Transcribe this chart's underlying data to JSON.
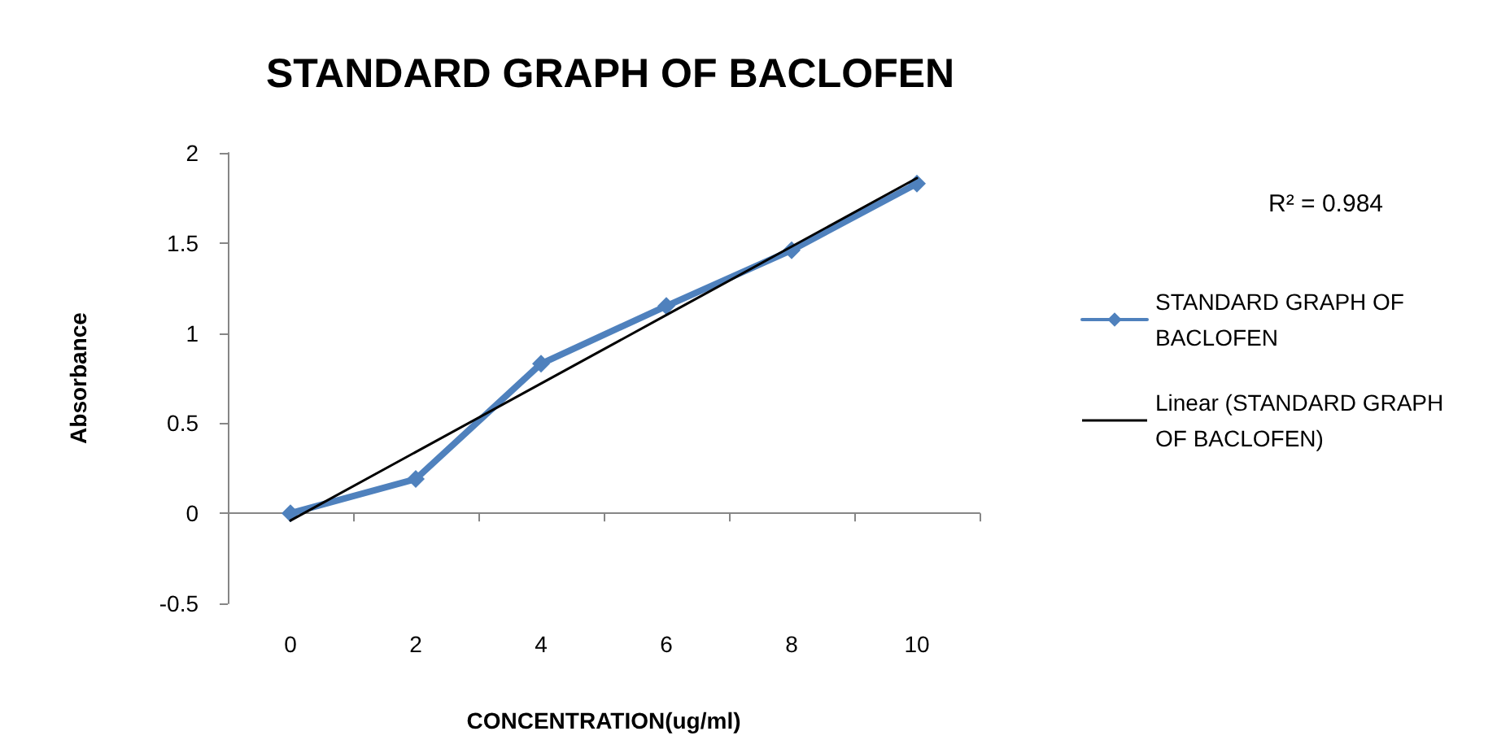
{
  "chart_data": {
    "type": "line",
    "title": "STANDARD GRAPH OF BACLOFEN",
    "xlabel": "CONCENTRATION(ug/ml)",
    "ylabel": "Absorbance",
    "categories": [
      "0",
      "2",
      "4",
      "6",
      "8",
      "10"
    ],
    "series": [
      {
        "name": "STANDARD GRAPH OF BACLOFEN",
        "color": "#4f81bd",
        "values": [
          0,
          0.19,
          0.83,
          1.15,
          1.46,
          1.83
        ],
        "marker": "diamond"
      },
      {
        "name": "Linear (STANDARD GRAPH OF BACLOFEN)",
        "color": "#000000",
        "values": [
          -0.04,
          0.34,
          0.72,
          1.1,
          1.48,
          1.86
        ],
        "marker": "none"
      }
    ],
    "ylim": [
      -0.5,
      2
    ],
    "yticks": [
      -0.5,
      0,
      0.5,
      1,
      1.5,
      2
    ],
    "legend": "right",
    "annotations": [
      "R² = 0.984"
    ]
  }
}
